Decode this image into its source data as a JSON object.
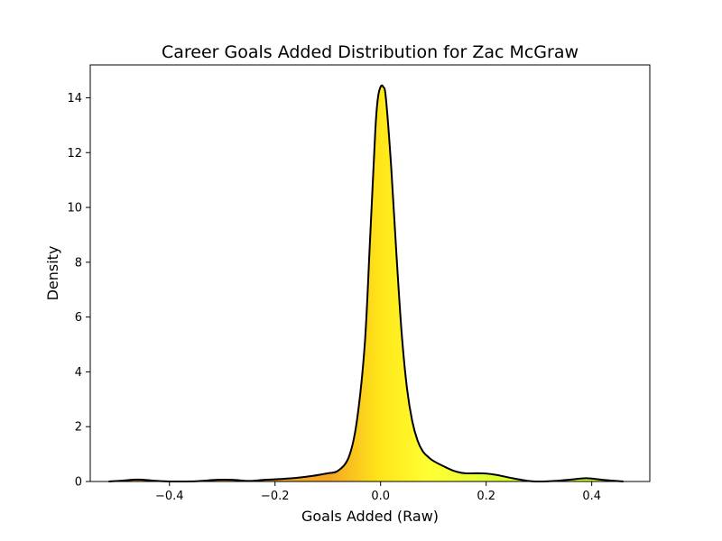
{
  "chart_data": {
    "type": "area",
    "title": "Career Goals Added Distribution for Zac McGraw",
    "xlabel": "Goals Added (Raw)",
    "ylabel": "Density",
    "xlim": [
      -0.55,
      0.51
    ],
    "ylim": [
      0,
      15.2
    ],
    "xticks": [
      -0.4,
      -0.2,
      0.0,
      0.2,
      0.4
    ],
    "xtick_labels": [
      "−0.4",
      "−0.2",
      "0.0",
      "0.2",
      "0.4"
    ],
    "yticks": [
      0,
      2,
      4,
      6,
      8,
      10,
      12,
      14
    ],
    "ytick_labels": [
      "0",
      "2",
      "4",
      "6",
      "8",
      "10",
      "12",
      "14"
    ],
    "grid": false,
    "legend": false,
    "line_color": "#000000",
    "fill_gradient": [
      "#f5a623",
      "#ffe619",
      "#ffff33",
      "#c8ff33"
    ],
    "series": [
      {
        "x": [
          -0.515,
          -0.49,
          -0.46,
          -0.43,
          -0.4,
          -0.35,
          -0.31,
          -0.28,
          -0.25,
          -0.22,
          -0.19,
          -0.16,
          -0.13,
          -0.1,
          -0.08,
          -0.06,
          -0.045,
          -0.03,
          -0.02,
          -0.01,
          -0.005,
          0.0,
          0.005,
          0.01,
          0.02,
          0.03,
          0.04,
          0.05,
          0.06,
          0.07,
          0.08,
          0.09,
          0.1,
          0.12,
          0.14,
          0.16,
          0.18,
          0.2,
          0.22,
          0.25,
          0.28,
          0.3,
          0.33,
          0.36,
          0.39,
          0.42,
          0.46
        ],
        "y": [
          0.0,
          0.03,
          0.07,
          0.03,
          0.0,
          0.01,
          0.06,
          0.06,
          0.02,
          0.06,
          0.09,
          0.13,
          0.2,
          0.3,
          0.4,
          0.9,
          2.2,
          5.0,
          8.8,
          12.8,
          14.0,
          14.4,
          14.4,
          14.0,
          11.5,
          8.3,
          5.4,
          3.4,
          2.2,
          1.5,
          1.1,
          0.9,
          0.75,
          0.55,
          0.38,
          0.3,
          0.3,
          0.29,
          0.24,
          0.12,
          0.02,
          0.0,
          0.02,
          0.07,
          0.12,
          0.06,
          0.0
        ]
      }
    ]
  }
}
